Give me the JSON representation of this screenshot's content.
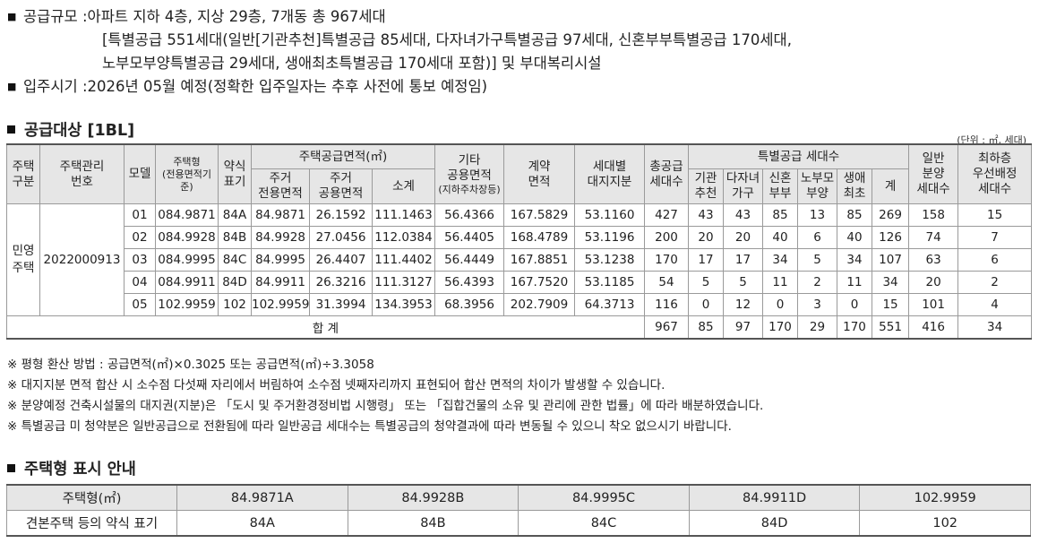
{
  "info": {
    "scale_label": "공급규모 : ",
    "scale_line1": "아파트 지하 4층, 지상 29층, 7개동 총 967세대",
    "scale_line2": "[특별공급 551세대(일반[기관추천]특별공급 85세대, 다자녀가구특별공급 97세대, 신혼부부특별공급 170세대,",
    "scale_line3": "노부모부양특별공급 29세대, 생애최초특별공급 170세대 포함)] 및 부대복리시설",
    "move_label": "입주시기 : ",
    "move_text": "2026년 05월 예정(정확한 입주일자는 추후 사전에 통보 예정임)"
  },
  "supply_title": "공급대상 [1BL]",
  "unit_note": "(단위 : ㎡, 세대)",
  "headers": {
    "type_div": "주택\n구분",
    "mgmt_no": "주택관리\n번호",
    "model": "모델",
    "house_type": "주택형\n(전용면적기준)",
    "abbr": "약식\n표기",
    "supply_area": "주택공급면적(㎡)",
    "exclusive": "주거\n전용면적",
    "common": "주거\n공용면적",
    "subtotal": "소계",
    "other_common": "기타\n공용면적",
    "other_common_sub": "(지하주차장등)",
    "contract_area": "계약\n면적",
    "land_share": "세대별\n대지지분",
    "total_supply": "총공급\n세대수",
    "special": "특별공급 세대수",
    "sp_inst": "기관\n추천",
    "sp_multi": "다자녀\n가구",
    "sp_newly": "신혼\n부부",
    "sp_parent": "노부모\n부양",
    "sp_first": "생애\n최초",
    "sp_sum": "계",
    "general": "일반\n분양\n세대수",
    "priority": "최하층\n우선배정\n세대수"
  },
  "group": {
    "type_div": "민영\n주택",
    "mgmt_no": "2022000913"
  },
  "rows": [
    {
      "model": "01",
      "type": "084.9871",
      "abbr": "84A",
      "excl": "84.9871",
      "common": "26.1592",
      "sub": "111.1463",
      "other": "56.4366",
      "contract": "167.5829",
      "land": "53.1160",
      "total": "427",
      "inst": "43",
      "multi": "43",
      "newly": "85",
      "parent": "13",
      "first": "85",
      "spsum": "269",
      "general": "158",
      "prio": "15"
    },
    {
      "model": "02",
      "type": "084.9928",
      "abbr": "84B",
      "excl": "84.9928",
      "common": "27.0456",
      "sub": "112.0384",
      "other": "56.4405",
      "contract": "168.4789",
      "land": "53.1196",
      "total": "200",
      "inst": "20",
      "multi": "20",
      "newly": "40",
      "parent": "6",
      "first": "40",
      "spsum": "126",
      "general": "74",
      "prio": "7"
    },
    {
      "model": "03",
      "type": "084.9995",
      "abbr": "84C",
      "excl": "84.9995",
      "common": "26.4407",
      "sub": "111.4402",
      "other": "56.4449",
      "contract": "167.8851",
      "land": "53.1238",
      "total": "170",
      "inst": "17",
      "multi": "17",
      "newly": "34",
      "parent": "5",
      "first": "34",
      "spsum": "107",
      "general": "63",
      "prio": "6"
    },
    {
      "model": "04",
      "type": "084.9911",
      "abbr": "84D",
      "excl": "84.9911",
      "common": "26.3216",
      "sub": "111.3127",
      "other": "56.4393",
      "contract": "167.7520",
      "land": "53.1185",
      "total": "54",
      "inst": "5",
      "multi": "5",
      "newly": "11",
      "parent": "2",
      "first": "11",
      "spsum": "34",
      "general": "20",
      "prio": "2"
    },
    {
      "model": "05",
      "type": "102.9959",
      "abbr": "102",
      "excl": "102.9959",
      "common": "31.3994",
      "sub": "134.3953",
      "other": "68.3956",
      "contract": "202.7909",
      "land": "64.3713",
      "total": "116",
      "inst": "0",
      "multi": "12",
      "newly": "0",
      "parent": "3",
      "first": "0",
      "spsum": "15",
      "general": "101",
      "prio": "4"
    }
  ],
  "totals": {
    "label": "합 계",
    "total": "967",
    "inst": "85",
    "multi": "97",
    "newly": "170",
    "parent": "29",
    "first": "170",
    "spsum": "551",
    "general": "416",
    "prio": "34"
  },
  "notes": [
    "※ 평형 환산 방법 : 공급면적(㎡)×0.3025 또는 공급면적(㎡)÷3.3058",
    "※ 대지지분 면적 합산 시 소수점 다섯째 자리에서 버림하여 소수점 넷째자리까지 표현되어 합산 면적의 차이가 발생할 수 있습니다.",
    "※ 분양예정 건축시설물의 대지권(지분)은 「도시 및 주거환경정비법 시행령」 또는 「집합건물의 소유 및 관리에 관한 법률」에 따라 배분하였습니다.",
    "※ 특별공급 미 청약분은 일반공급으로 전환됨에 따라 일반공급 세대수는 특별공급의 청약결과에 따라 변동될 수 있으니 착오 없으시기 바랍니다."
  ],
  "type_section": {
    "title": "주택형 표시 안내",
    "header_label": "주택형(㎡)",
    "types": [
      "84.9871A",
      "84.9928B",
      "84.9995C",
      "84.9911D",
      "102.9959"
    ],
    "row_label": "견본주택 등의 약식 표기",
    "abbrs": [
      "84A",
      "84B",
      "84C",
      "84D",
      "102"
    ]
  }
}
